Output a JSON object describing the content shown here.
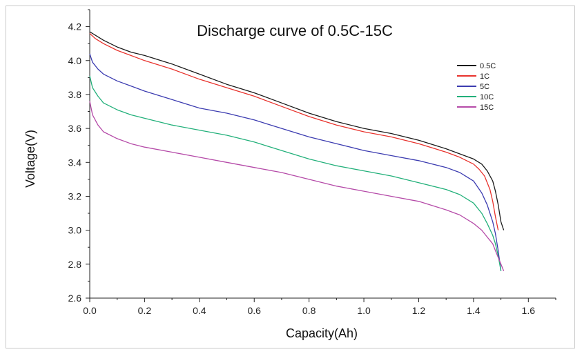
{
  "chart_data": {
    "type": "line",
    "title": "Discharge curve of 0.5C-15C",
    "xlabel": "Capacity(Ah)",
    "ylabel": "Voltage(V)",
    "xlim": [
      0.0,
      1.7
    ],
    "ylim": [
      2.6,
      4.3
    ],
    "xticks": [
      "0.0",
      "0.2",
      "0.4",
      "0.6",
      "0.8",
      "1.0",
      "1.2",
      "1.4",
      "1.6"
    ],
    "yticks": [
      "2.6",
      "2.8",
      "3.0",
      "3.2",
      "3.4",
      "3.6",
      "3.8",
      "4.0",
      "4.2"
    ],
    "legend_position": "top-right",
    "series": [
      {
        "name": "0.5C",
        "color": "#1a1a1a",
        "x": [
          0.0,
          0.02,
          0.05,
          0.1,
          0.15,
          0.2,
          0.3,
          0.4,
          0.5,
          0.6,
          0.7,
          0.8,
          0.9,
          1.0,
          1.1,
          1.2,
          1.3,
          1.35,
          1.4,
          1.43,
          1.45,
          1.47,
          1.48,
          1.49,
          1.5,
          1.51
        ],
        "y": [
          4.17,
          4.15,
          4.12,
          4.08,
          4.05,
          4.03,
          3.98,
          3.92,
          3.86,
          3.81,
          3.75,
          3.69,
          3.64,
          3.6,
          3.57,
          3.53,
          3.48,
          3.45,
          3.42,
          3.39,
          3.35,
          3.29,
          3.23,
          3.15,
          3.05,
          3.0
        ]
      },
      {
        "name": "1C",
        "color": "#e8322c",
        "x": [
          0.0,
          0.02,
          0.05,
          0.1,
          0.15,
          0.2,
          0.3,
          0.4,
          0.5,
          0.6,
          0.7,
          0.8,
          0.9,
          1.0,
          1.1,
          1.2,
          1.3,
          1.35,
          1.4,
          1.42,
          1.44,
          1.46,
          1.47,
          1.48,
          1.49
        ],
        "y": [
          4.16,
          4.13,
          4.1,
          4.06,
          4.03,
          4.0,
          3.95,
          3.89,
          3.84,
          3.79,
          3.73,
          3.67,
          3.62,
          3.58,
          3.55,
          3.51,
          3.46,
          3.43,
          3.39,
          3.36,
          3.32,
          3.24,
          3.17,
          3.08,
          3.0
        ]
      },
      {
        "name": "5C",
        "color": "#3b3bb0",
        "x": [
          0.0,
          0.01,
          0.03,
          0.05,
          0.1,
          0.15,
          0.2,
          0.3,
          0.4,
          0.5,
          0.6,
          0.7,
          0.8,
          0.9,
          1.0,
          1.1,
          1.2,
          1.3,
          1.35,
          1.4,
          1.43,
          1.45,
          1.47,
          1.48,
          1.49,
          1.5
        ],
        "y": [
          4.04,
          3.99,
          3.95,
          3.92,
          3.88,
          3.85,
          3.82,
          3.77,
          3.72,
          3.69,
          3.65,
          3.6,
          3.55,
          3.51,
          3.47,
          3.44,
          3.41,
          3.37,
          3.34,
          3.29,
          3.22,
          3.15,
          3.05,
          2.98,
          2.88,
          2.76
        ]
      },
      {
        "name": "10C",
        "color": "#22b07a",
        "x": [
          0.0,
          0.01,
          0.03,
          0.05,
          0.1,
          0.15,
          0.2,
          0.3,
          0.4,
          0.5,
          0.6,
          0.7,
          0.8,
          0.9,
          1.0,
          1.1,
          1.2,
          1.3,
          1.35,
          1.4,
          1.43,
          1.45,
          1.47,
          1.48,
          1.49,
          1.5
        ],
        "y": [
          3.91,
          3.84,
          3.79,
          3.75,
          3.71,
          3.68,
          3.66,
          3.62,
          3.59,
          3.56,
          3.52,
          3.47,
          3.42,
          3.38,
          3.35,
          3.32,
          3.28,
          3.24,
          3.21,
          3.16,
          3.1,
          3.04,
          2.97,
          2.92,
          2.85,
          2.76
        ]
      },
      {
        "name": "15C",
        "color": "#b54aa8",
        "x": [
          0.0,
          0.01,
          0.03,
          0.05,
          0.1,
          0.15,
          0.2,
          0.3,
          0.4,
          0.5,
          0.6,
          0.7,
          0.8,
          0.9,
          1.0,
          1.1,
          1.2,
          1.3,
          1.35,
          1.4,
          1.43,
          1.45,
          1.47,
          1.48,
          1.49,
          1.5,
          1.51
        ],
        "y": [
          3.76,
          3.68,
          3.62,
          3.58,
          3.54,
          3.51,
          3.49,
          3.46,
          3.43,
          3.4,
          3.37,
          3.34,
          3.3,
          3.26,
          3.23,
          3.2,
          3.17,
          3.12,
          3.09,
          3.04,
          3.0,
          2.96,
          2.92,
          2.88,
          2.84,
          2.8,
          2.76
        ]
      }
    ]
  }
}
